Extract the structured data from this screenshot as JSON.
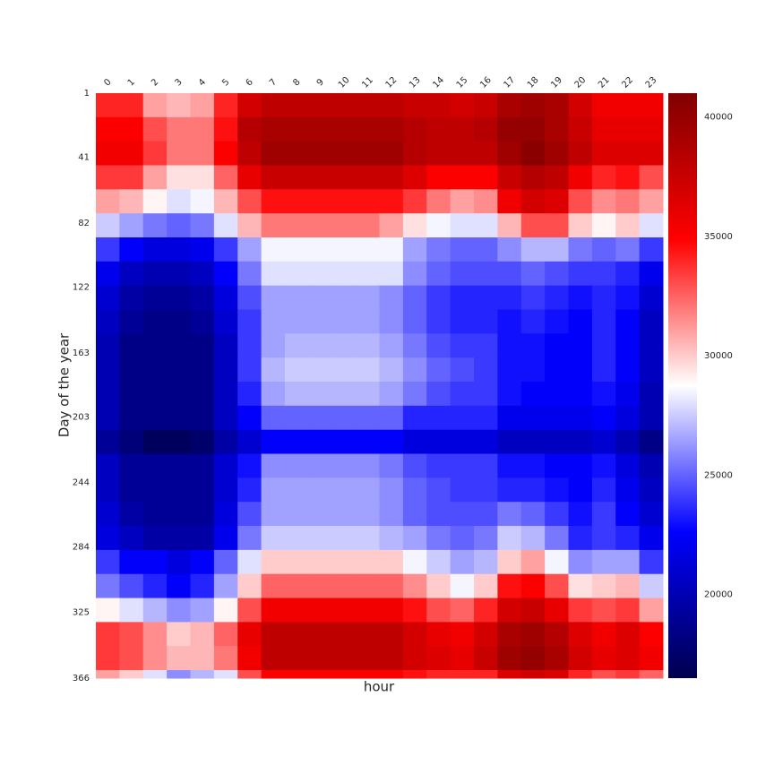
{
  "chart_data": {
    "type": "heatmap",
    "cmap": "seismic",
    "xlabel": "hour",
    "ylabel": "Day of the year",
    "categories": [
      "0",
      "1",
      "2",
      "3",
      "4",
      "5",
      "6",
      "7",
      "8",
      "9",
      "10",
      "11",
      "12",
      "13",
      "14",
      "15",
      "16",
      "17",
      "18",
      "19",
      "20",
      "21",
      "22",
      "23"
    ],
    "row_edges": [
      1,
      16,
      31,
      46,
      61,
      76,
      91,
      106,
      121,
      136,
      151,
      166,
      181,
      196,
      211,
      226,
      241,
      256,
      271,
      286,
      301,
      316,
      331,
      346,
      361,
      366
    ],
    "ylim": [
      1,
      366
    ],
    "yticks": [
      1,
      41,
      82,
      122,
      163,
      203,
      244,
      284,
      325,
      366
    ],
    "clim": [
      16500,
      41000
    ],
    "colorbar_ticks": [
      20000,
      25000,
      30000,
      35000,
      40000
    ],
    "values": [
      [
        34000,
        34000,
        31000,
        30500,
        31000,
        34000,
        37000,
        38000,
        38000,
        38000,
        38000,
        38000,
        38000,
        37500,
        37500,
        37000,
        37500,
        39000,
        39500,
        39000,
        37000,
        35500,
        35500,
        35500
      ],
      [
        35000,
        35000,
        33000,
        32000,
        32000,
        34500,
        38500,
        39000,
        39000,
        39000,
        39000,
        39000,
        39000,
        38500,
        38000,
        38000,
        38500,
        40000,
        40000,
        39000,
        37500,
        36000,
        36000,
        36000
      ],
      [
        35500,
        35500,
        33500,
        32000,
        32000,
        35000,
        38000,
        39500,
        39500,
        39500,
        39500,
        39500,
        39500,
        38500,
        38000,
        38000,
        38000,
        39500,
        40500,
        39500,
        38000,
        36500,
        36500,
        36500
      ],
      [
        33500,
        33500,
        31000,
        29500,
        29500,
        32500,
        36000,
        37500,
        37500,
        37500,
        37500,
        37500,
        37500,
        36500,
        35000,
        35000,
        35000,
        37500,
        38500,
        38000,
        35500,
        34000,
        34500,
        33000
      ],
      [
        31000,
        30500,
        29000,
        28000,
        28500,
        30500,
        33000,
        34500,
        34500,
        34500,
        34500,
        34500,
        34500,
        33500,
        32000,
        31000,
        31500,
        35500,
        37000,
        36500,
        33000,
        31500,
        32000,
        31000
      ],
      [
        27500,
        26500,
        25500,
        25000,
        25500,
        28000,
        30500,
        32000,
        32000,
        32000,
        32000,
        32000,
        31000,
        29500,
        28500,
        28000,
        28000,
        30500,
        33000,
        33000,
        30000,
        29000,
        30000,
        28000
      ],
      [
        24000,
        22500,
        21500,
        21500,
        22000,
        24000,
        26500,
        28500,
        28500,
        28500,
        28500,
        28500,
        28500,
        26500,
        25500,
        25000,
        25000,
        26000,
        27000,
        27000,
        25500,
        25000,
        25500,
        24000
      ],
      [
        22000,
        20500,
        20000,
        20000,
        20500,
        22500,
        25500,
        28000,
        28000,
        28000,
        28000,
        28000,
        28000,
        26000,
        25000,
        24500,
        24500,
        24500,
        25000,
        24500,
        24000,
        24000,
        23500,
        22000
      ],
      [
        21000,
        19500,
        19000,
        19000,
        19500,
        21500,
        24500,
        26500,
        26500,
        26500,
        26500,
        26500,
        26000,
        25000,
        24000,
        23500,
        23500,
        23500,
        24000,
        23500,
        23000,
        23500,
        23000,
        21000
      ],
      [
        20500,
        19000,
        18500,
        18500,
        19000,
        21000,
        24000,
        26500,
        26500,
        26500,
        26500,
        26500,
        26000,
        25000,
        24000,
        23500,
        23500,
        23000,
        23500,
        23000,
        22500,
        23500,
        22500,
        20500
      ],
      [
        20000,
        18500,
        18500,
        18500,
        18500,
        20500,
        24000,
        26500,
        27000,
        27000,
        27000,
        27000,
        26500,
        25500,
        24500,
        24000,
        24000,
        23000,
        23000,
        22500,
        22500,
        23500,
        22500,
        20500
      ],
      [
        20000,
        18500,
        18500,
        18500,
        18500,
        20500,
        24000,
        27000,
        27500,
        27500,
        27500,
        27500,
        27000,
        26000,
        25000,
        24500,
        24000,
        23000,
        23000,
        22500,
        22500,
        23500,
        22500,
        20500
      ],
      [
        20000,
        18500,
        18500,
        18500,
        18500,
        20500,
        23500,
        26500,
        27000,
        27000,
        27000,
        27000,
        26500,
        25500,
        24500,
        24000,
        24000,
        23000,
        22500,
        22500,
        22500,
        23000,
        22000,
        20000
      ],
      [
        20000,
        18500,
        18500,
        18500,
        18500,
        20500,
        22500,
        25000,
        25000,
        25000,
        25000,
        25000,
        25000,
        23500,
        23500,
        23500,
        23500,
        22000,
        22000,
        22000,
        22000,
        22500,
        21500,
        20000
      ],
      [
        19000,
        18000,
        17000,
        17000,
        17500,
        19500,
        21000,
        22500,
        22500,
        22500,
        22500,
        22500,
        22500,
        21500,
        21500,
        21500,
        21500,
        20500,
        20500,
        20500,
        20500,
        21000,
        20000,
        18500
      ],
      [
        20500,
        19000,
        19000,
        19000,
        19000,
        21000,
        23000,
        26000,
        26000,
        26000,
        26000,
        26000,
        25500,
        24500,
        24000,
        24000,
        24000,
        23000,
        23000,
        22500,
        22500,
        23000,
        21500,
        20000
      ],
      [
        20500,
        19000,
        19000,
        19000,
        19000,
        21000,
        23500,
        26500,
        26500,
        26500,
        26500,
        26500,
        26000,
        25000,
        24500,
        24000,
        24000,
        23500,
        23500,
        23000,
        22500,
        23500,
        22000,
        20500
      ],
      [
        21000,
        19500,
        19000,
        19000,
        19000,
        21500,
        24500,
        26500,
        26500,
        26500,
        26500,
        26500,
        26000,
        25000,
        24500,
        24500,
        24500,
        25500,
        25000,
        24000,
        23000,
        24000,
        22500,
        21000
      ],
      [
        21500,
        20500,
        19500,
        19500,
        19500,
        22000,
        25500,
        27500,
        27500,
        27500,
        27500,
        27500,
        27000,
        26500,
        25500,
        25000,
        25500,
        27500,
        27000,
        25500,
        23500,
        24000,
        23500,
        22000
      ],
      [
        24000,
        22500,
        22500,
        21500,
        22500,
        25000,
        28000,
        30000,
        30000,
        30000,
        30000,
        30000,
        30000,
        28500,
        27500,
        26500,
        27000,
        30000,
        31000,
        28500,
        26000,
        26500,
        26500,
        24000
      ],
      [
        25500,
        24500,
        23500,
        22500,
        23500,
        26500,
        30000,
        32500,
        32500,
        32500,
        32500,
        32500,
        32500,
        31500,
        30000,
        28500,
        30000,
        34500,
        35000,
        33000,
        29500,
        30000,
        30500,
        27500
      ],
      [
        29000,
        28000,
        27000,
        26000,
        26500,
        29000,
        33000,
        35500,
        35500,
        35500,
        35500,
        35500,
        35500,
        34500,
        33000,
        32500,
        34000,
        37000,
        37500,
        36000,
        33500,
        33000,
        33500,
        31000
      ],
      [
        33500,
        33000,
        31500,
        30000,
        30500,
        32500,
        36000,
        38000,
        38000,
        38000,
        38000,
        38000,
        38000,
        37000,
        36000,
        35500,
        37000,
        39000,
        39500,
        38500,
        36500,
        35500,
        36500,
        35000
      ],
      [
        33500,
        33000,
        31500,
        30500,
        30500,
        32000,
        35500,
        38000,
        38000,
        38000,
        38000,
        38000,
        38000,
        37000,
        36500,
        36000,
        37500,
        39500,
        40000,
        39000,
        37000,
        36000,
        36500,
        35500
      ],
      [
        31000,
        30000,
        28000,
        26000,
        27000,
        28000,
        33000,
        35000,
        35000,
        35000,
        35000,
        35000,
        35000,
        34500,
        34000,
        34000,
        34000,
        36500,
        37000,
        36500,
        34000,
        33000,
        33500,
        32500
      ]
    ]
  }
}
